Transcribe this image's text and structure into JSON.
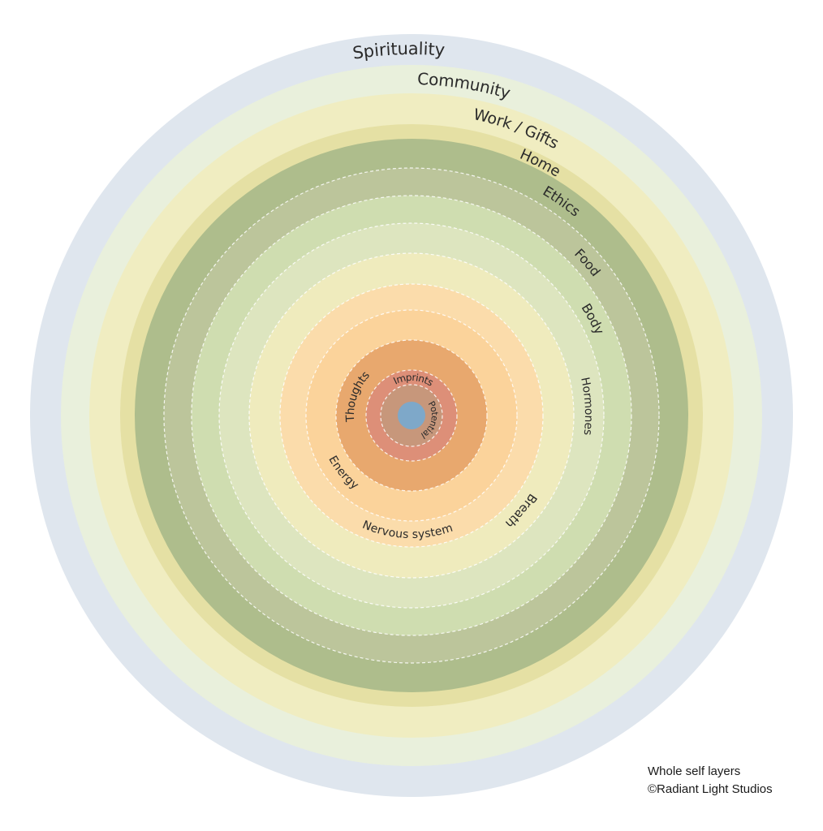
{
  "diagram": {
    "layers": [
      {
        "label": "Spirituality",
        "color": "#dfe6ee"
      },
      {
        "label": "Community",
        "color": "#e9f0dc"
      },
      {
        "label": "Work / Gifts",
        "color": "#f0edc1"
      },
      {
        "label": "Home",
        "color": "#e5e0a4"
      },
      {
        "label": "Ethics",
        "color": "#aebd8c"
      },
      {
        "label": "Food",
        "color": "#bcc59b"
      },
      {
        "label": "Body",
        "color": "#cfddb0"
      },
      {
        "label": "Hormones",
        "color": "#dde5bf"
      },
      {
        "label": "Breath",
        "color": "#efebbd"
      },
      {
        "label": "Nervous system",
        "color": "#fbdcab"
      },
      {
        "label": "Energy",
        "color": "#fbd39b"
      },
      {
        "label": "Thoughts",
        "color": "#e8a86e"
      },
      {
        "label": "Imprints",
        "color": "#dd8f78"
      },
      {
        "label": "Potential",
        "color": "#c7977b"
      },
      {
        "label": "",
        "color": "#7ea8c9"
      }
    ],
    "divider_color": "#ffffff"
  },
  "caption": {
    "line1": "Whole self layers",
    "line2": "©Radiant Light Studios"
  }
}
